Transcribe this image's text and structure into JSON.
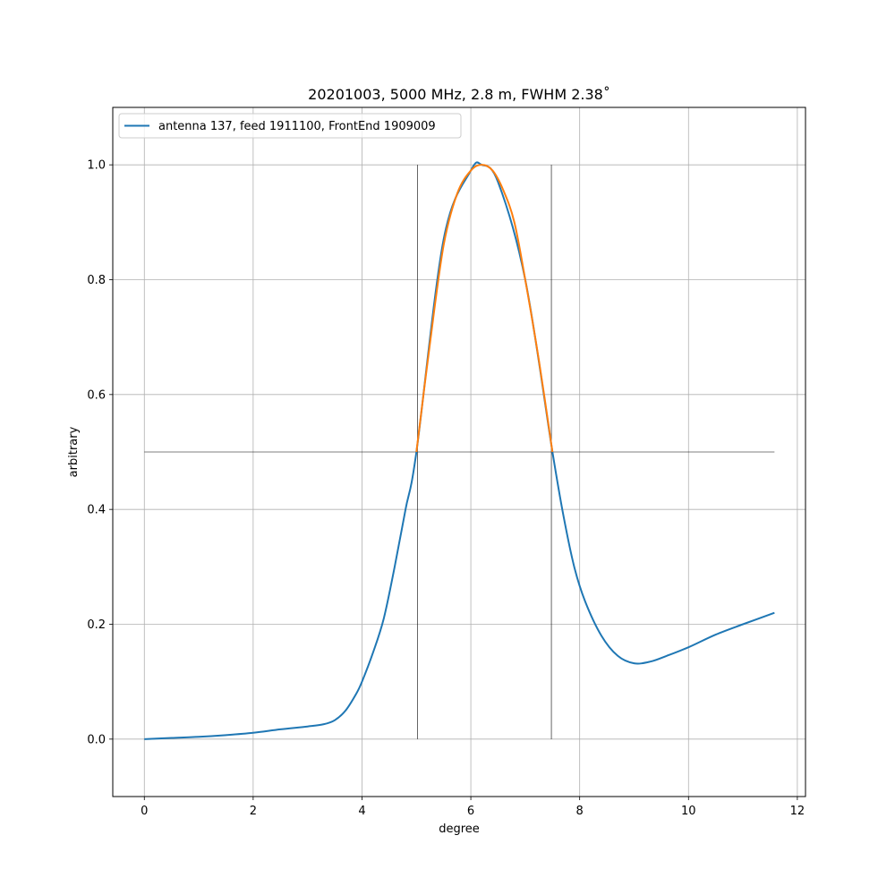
{
  "chart_data": {
    "type": "line",
    "title": "20201003, 5000 MHz, 2.8 m, FWHM 2.38˚",
    "xlabel": "degree",
    "ylabel": "arbitrary",
    "xlim": [
      -0.58,
      12.15
    ],
    "ylim": [
      -0.1,
      1.1
    ],
    "xticks": [
      0,
      2,
      4,
      6,
      8,
      10,
      12
    ],
    "xtick_labels": [
      "0",
      "2",
      "4",
      "6",
      "8",
      "10",
      "12"
    ],
    "yticks": [
      0.0,
      0.2,
      0.4,
      0.6,
      0.8,
      1.0
    ],
    "ytick_labels": [
      "0.0",
      "0.2",
      "0.4",
      "0.6",
      "0.8",
      "1.0"
    ],
    "grid": true,
    "legend_position": "top-left",
    "series": [
      {
        "name": "antenna 137, feed 1911100, FrontEnd 1909009",
        "color": "#1f77b4",
        "x": [
          0,
          0.5,
          1.0,
          1.5,
          2.0,
          2.5,
          3.0,
          3.3,
          3.5,
          3.7,
          3.9,
          4.0,
          4.2,
          4.4,
          4.6,
          4.8,
          5.0,
          5.5,
          6.0,
          6.2,
          6.5,
          7.0,
          7.5,
          7.7,
          7.9,
          8.1,
          8.4,
          8.7,
          9.0,
          9.3,
          9.6,
          10.0,
          10.5,
          11.0,
          11.58
        ],
        "y": [
          0.0,
          0.002,
          0.004,
          0.007,
          0.011,
          0.017,
          0.022,
          0.026,
          0.033,
          0.05,
          0.08,
          0.1,
          0.15,
          0.21,
          0.3,
          0.4,
          0.5,
          0.87,
          0.99,
          1.0,
          0.97,
          0.8,
          0.5,
          0.39,
          0.3,
          0.24,
          0.18,
          0.145,
          0.132,
          0.135,
          0.145,
          0.16,
          0.182,
          0.2,
          0.22
        ]
      },
      {
        "name": "",
        "color": "#ff7f0e",
        "x": [
          5.0,
          5.25,
          5.5,
          5.75,
          6.0,
          6.2,
          6.4,
          6.6,
          6.8,
          7.0,
          7.25,
          7.5
        ],
        "y": [
          0.5,
          0.69,
          0.86,
          0.95,
          0.99,
          1.0,
          0.99,
          0.955,
          0.9,
          0.8,
          0.66,
          0.5
        ]
      }
    ],
    "reference_lines": {
      "horizontal": {
        "y": 0.5,
        "x_range": [
          0,
          11.58
        ]
      },
      "vertical": [
        {
          "x": 5.02,
          "y_range": [
            0,
            1
          ]
        },
        {
          "x": 7.48,
          "y_range": [
            0,
            1
          ]
        }
      ]
    }
  }
}
